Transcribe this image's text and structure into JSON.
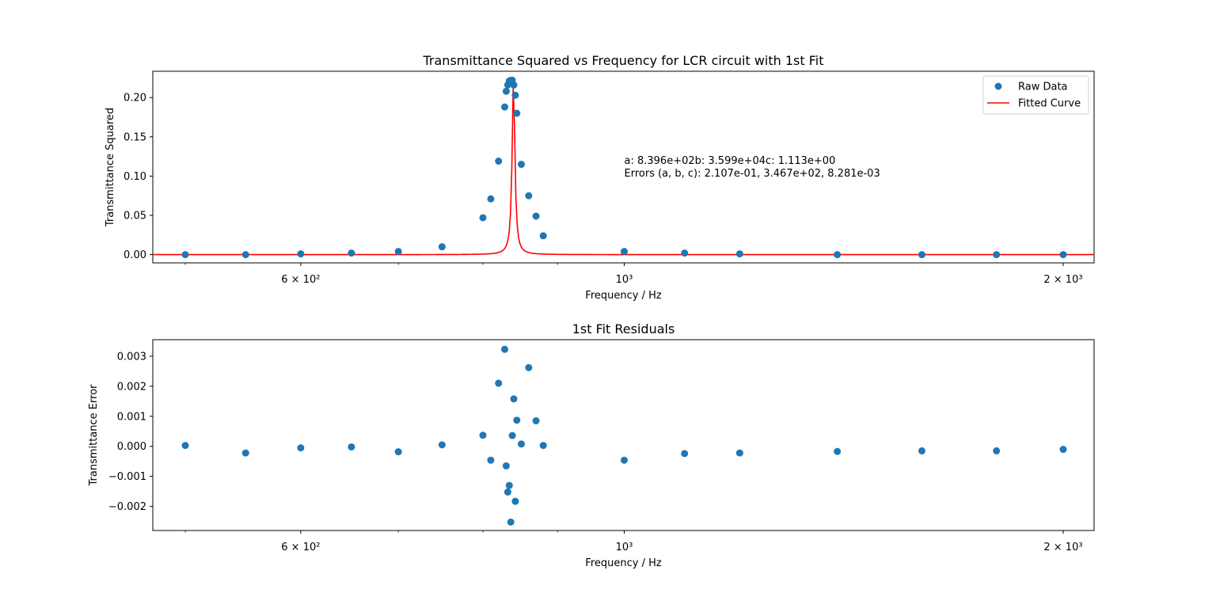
{
  "chart_data": [
    {
      "type": "scatter",
      "title": "Transmittance Squared vs Frequency for LCR circuit with 1st Fit",
      "xlabel": "Frequency / Hz",
      "ylabel": "Transmittance Squared",
      "xscale": "log",
      "xlim": [
        475,
        2100
      ],
      "ylim": [
        -0.0105,
        0.2335
      ],
      "x_ticks": [
        {
          "value": 600,
          "label": "6 × 10²"
        },
        {
          "value": 1000,
          "label": "10³"
        },
        {
          "value": 2000,
          "label": "2 × 10³"
        }
      ],
      "x_minor_ticks": [
        500,
        700,
        800,
        900
      ],
      "y_ticks": [
        {
          "value": 0.0,
          "label": "0.00"
        },
        {
          "value": 0.05,
          "label": "0.05"
        },
        {
          "value": 0.1,
          "label": "0.10"
        },
        {
          "value": 0.15,
          "label": "0.15"
        },
        {
          "value": 0.2,
          "label": "0.20"
        }
      ],
      "legend_position": "top-right",
      "series": [
        {
          "name": "Raw Data",
          "kind": "scatter",
          "color": "#1f77b4",
          "x": [
            500,
            550,
            600,
            650,
            700,
            750,
            800,
            810,
            820,
            828,
            830,
            832,
            834,
            836,
            838,
            840,
            842,
            844,
            850,
            860,
            870,
            880,
            1000,
            1100,
            1200,
            1400,
            1600,
            1800,
            2000
          ],
          "y": [
            0.0,
            0.0,
            0.001,
            0.002,
            0.004,
            0.01,
            0.047,
            0.071,
            0.119,
            0.188,
            0.208,
            0.216,
            0.221,
            0.222,
            0.222,
            0.216,
            0.203,
            0.18,
            0.115,
            0.075,
            0.049,
            0.024,
            0.004,
            0.002,
            0.001,
            0.0,
            0.0,
            0.0,
            0.0
          ]
        },
        {
          "name": "Fitted Curve",
          "kind": "line",
          "color": "#ff0000",
          "model": {
            "a": 839.6,
            "b": 35990,
            "c": 1.113
          }
        }
      ],
      "annotation": [
        "a: 8.396e+02b: 3.599e+04c: 1.113e+00",
        "Errors (a, b, c): 2.107e-01, 3.467e+02, 8.281e-03"
      ]
    },
    {
      "type": "scatter",
      "title": "1st Fit Residuals",
      "xlabel": "Frequency / Hz",
      "ylabel": "Transmittance Error",
      "xscale": "log",
      "xlim": [
        475,
        2100
      ],
      "ylim": [
        -0.0028,
        0.00355
      ],
      "x_ticks": [
        {
          "value": 600,
          "label": "6 × 10²"
        },
        {
          "value": 1000,
          "label": "10³"
        },
        {
          "value": 2000,
          "label": "2 × 10³"
        }
      ],
      "x_minor_ticks": [
        500,
        700,
        800,
        900
      ],
      "y_ticks": [
        {
          "value": -0.002,
          "label": "−0.002"
        },
        {
          "value": -0.001,
          "label": "−0.001"
        },
        {
          "value": 0.0,
          "label": "0.000"
        },
        {
          "value": 0.001,
          "label": "0.001"
        },
        {
          "value": 0.002,
          "label": "0.002"
        },
        {
          "value": 0.003,
          "label": "0.003"
        }
      ],
      "series": [
        {
          "kind": "scatter",
          "color": "#1f77b4",
          "x": [
            500,
            550,
            600,
            650,
            700,
            750,
            800,
            810,
            820,
            828,
            830,
            832,
            834,
            836,
            838,
            840,
            842,
            844,
            850,
            860,
            870,
            880,
            1000,
            1100,
            1200,
            1400,
            1600,
            1800,
            2000
          ],
          "y": [
            3e-05,
            -0.00022,
            -5e-05,
            -2e-05,
            -0.00018,
            5e-05,
            0.00037,
            -0.00046,
            0.0021,
            0.00323,
            -0.00065,
            -0.00152,
            -0.0013,
            -0.00252,
            0.00036,
            0.00158,
            -0.00183,
            0.00087,
            8e-05,
            0.00262,
            0.00085,
            3e-05,
            -0.00046,
            -0.00024,
            -0.00022,
            -0.00017,
            -0.00015,
            -0.00015,
            -0.0001
          ]
        }
      ]
    }
  ]
}
